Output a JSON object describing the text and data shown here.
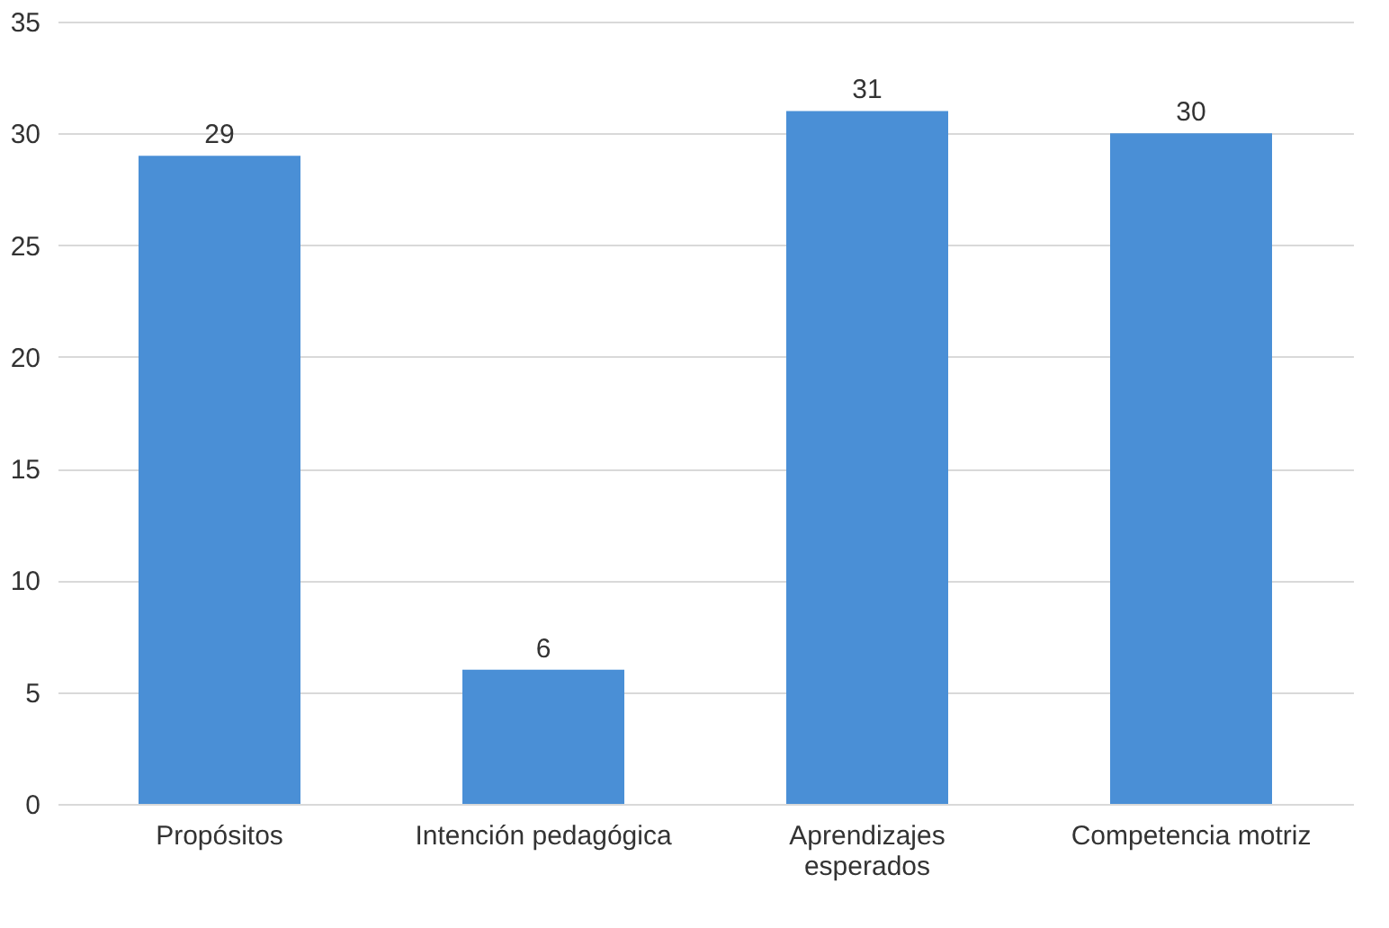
{
  "chart_data": {
    "type": "bar",
    "categories": [
      "Propósitos",
      "Intención pedagógica",
      "Aprendizajes esperados",
      "Competencia motriz"
    ],
    "values": [
      29,
      6,
      31,
      30
    ],
    "color": "#4a8fd6",
    "ylim": [
      0,
      35
    ],
    "yticks": [
      0,
      5,
      10,
      15,
      20,
      25,
      30,
      35
    ],
    "grid": "y",
    "data_labels": true
  }
}
